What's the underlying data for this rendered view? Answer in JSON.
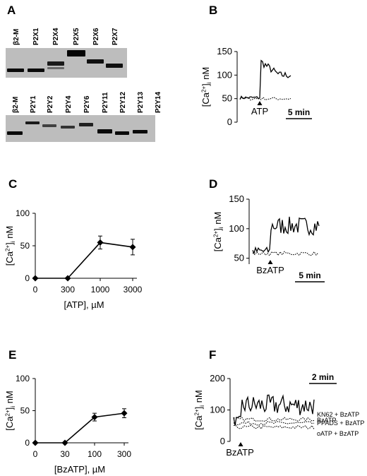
{
  "panels": {
    "A": {
      "label": "A",
      "gel_top": {
        "lanes": [
          "β2-M",
          "P2X1",
          "P2X4",
          "P2X5",
          "P2X6",
          "P2X7"
        ]
      },
      "gel_bottom": {
        "lanes": [
          "β2-M",
          "P2Y1",
          "P2Y2",
          "P2Y4",
          "P2Y6",
          "P2Y11",
          "P2Y12",
          "P2Y13",
          "P2Y14"
        ]
      }
    },
    "B": {
      "label": "B"
    },
    "C": {
      "label": "C"
    },
    "D": {
      "label": "D"
    },
    "E": {
      "label": "E"
    },
    "F": {
      "label": "F"
    }
  },
  "chart_data": [
    {
      "panel": "B",
      "type": "line",
      "ylabel": "[Ca2+]i nM",
      "yticks": [
        0,
        50,
        100,
        150
      ],
      "ylim": [
        0,
        150
      ],
      "series": [
        {
          "style": "solid",
          "baseline": 52,
          "peak": 130,
          "plateau": 100
        },
        {
          "style": "dotted",
          "baseline": 50
        }
      ],
      "annotations": {
        "stimulus": "ATP",
        "scale_bar": "5 min"
      }
    },
    {
      "panel": "C",
      "type": "line",
      "ylabel": "[Ca2+]i nM",
      "xlabel": "[ATP], µM",
      "categories": [
        "0",
        "300",
        "1000",
        "3000"
      ],
      "values": [
        0,
        0,
        55,
        48
      ],
      "errors": [
        0,
        0,
        10,
        12
      ],
      "yticks": [
        0,
        50,
        100
      ],
      "ylim": [
        0,
        100
      ]
    },
    {
      "panel": "D",
      "type": "line",
      "ylabel": "[Ca2+]i nM",
      "yticks": [
        50,
        100,
        150
      ],
      "ylim": [
        40,
        150
      ],
      "series": [
        {
          "style": "solid",
          "baseline": 62,
          "plateau": 105
        },
        {
          "style": "dotted",
          "baseline": 58
        }
      ],
      "annotations": {
        "stimulus": "BzATP",
        "scale_bar": "5 min"
      }
    },
    {
      "panel": "E",
      "type": "line",
      "ylabel": "[Ca2+]i nM",
      "xlabel": "[BzATP], µM",
      "categories": [
        "0",
        "30",
        "100",
        "300"
      ],
      "values": [
        0,
        0,
        40,
        46
      ],
      "errors": [
        0,
        0,
        6,
        7
      ],
      "yticks": [
        0,
        50,
        100
      ],
      "ylim": [
        0,
        100
      ]
    },
    {
      "panel": "F",
      "type": "line",
      "ylabel": "[Ca2+]i nM",
      "yticks": [
        0,
        100,
        200
      ],
      "ylim": [
        0,
        200
      ],
      "series": [
        {
          "name": "BzATP",
          "style": "solid",
          "baseline": 65,
          "plateau": 115
        },
        {
          "name": "KN62 + BzATP",
          "style": "dotted",
          "baseline": 70
        },
        {
          "name": "PPADS + BzATP",
          "style": "dotted",
          "baseline": 58
        },
        {
          "name": "oATP + BzATP",
          "style": "dotted",
          "baseline": 45
        }
      ],
      "annotations": {
        "stimulus": "BzATP",
        "scale_bar": "2 min"
      }
    }
  ]
}
